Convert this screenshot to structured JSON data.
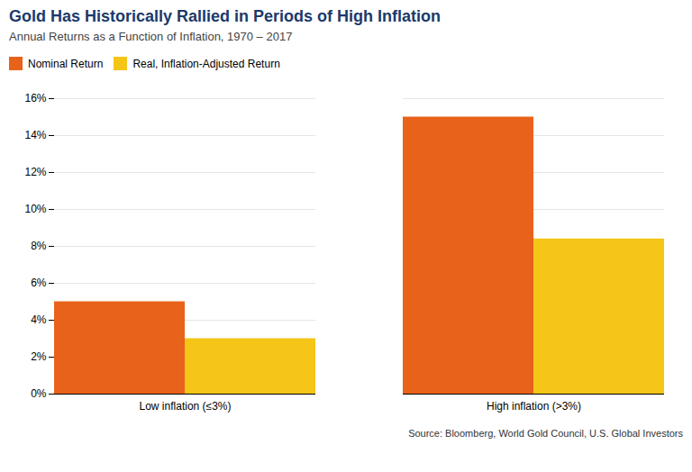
{
  "chart_data": {
    "type": "bar",
    "title": "Gold Has Historically Rallied in Periods of High Inflation",
    "subtitle": "Annual Returns as a Function of Inflation, 1970 – 2017",
    "source": "Source: Bloomberg, World Gold Council, U.S. Global Investors",
    "title_color": "#1B3A6B",
    "categories": [
      "Low inflation (≤3%)",
      "High inflation (>3%)"
    ],
    "series": [
      {
        "name": "Nominal Return",
        "color": "#E8621A",
        "values": [
          0.05,
          0.15
        ]
      },
      {
        "name": "Real, Inflation-Adjusted Return",
        "color": "#F5C518",
        "values": [
          0.03,
          0.084
        ]
      }
    ],
    "ylim": [
      0,
      0.16
    ],
    "yticks": [
      {
        "value": 0,
        "label": "0%"
      },
      {
        "value": 0.02,
        "label": "2%"
      },
      {
        "value": 0.04,
        "label": "4%"
      },
      {
        "value": 0.06,
        "label": "6%"
      },
      {
        "value": 0.08,
        "label": "8%"
      },
      {
        "value": 0.1,
        "label": "10%"
      },
      {
        "value": 0.12,
        "label": "12%"
      },
      {
        "value": 0.14,
        "label": "14%"
      },
      {
        "value": 0.16,
        "label": "16%"
      }
    ],
    "grid": true
  }
}
